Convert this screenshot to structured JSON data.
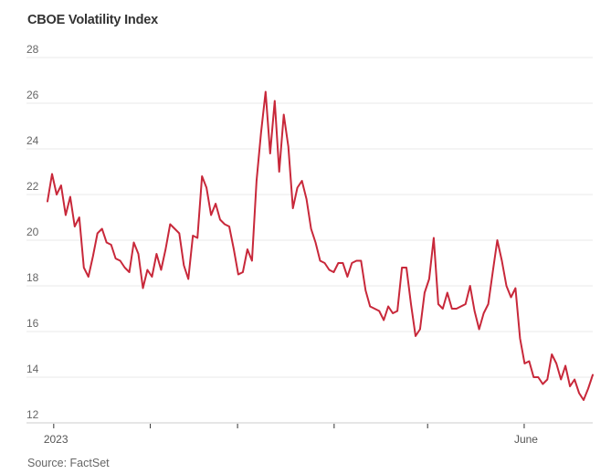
{
  "chart_data": {
    "type": "line",
    "title": "CBOE Volatility Index",
    "source": "Source: FactSet",
    "xlabel": "",
    "ylabel": "",
    "ylim": [
      12,
      28
    ],
    "yticks": [
      28,
      26,
      24,
      22,
      20,
      18,
      16,
      14,
      12
    ],
    "ytick_labels": [
      "28",
      "26",
      "24",
      "22",
      "20",
      "18",
      "16",
      "14",
      "12"
    ],
    "xlim": [
      "2022-12-30",
      "2023-06-23"
    ],
    "xticks": [
      {
        "date": "2023-01-01",
        "label": "2023"
      },
      {
        "date": "2023-02-01",
        "label": ""
      },
      {
        "date": "2023-03-01",
        "label": ""
      },
      {
        "date": "2023-04-01",
        "label": ""
      },
      {
        "date": "2023-05-01",
        "label": ""
      },
      {
        "date": "2023-06-01",
        "label": "June"
      }
    ],
    "grid": true,
    "legend": "none",
    "line_color": "#c8283a",
    "series": [
      {
        "name": "CBOE Volatility Index",
        "values": [
          21.7,
          22.9,
          22.0,
          22.4,
          21.1,
          21.9,
          20.6,
          21.0,
          18.8,
          18.4,
          19.3,
          20.3,
          20.5,
          19.9,
          19.8,
          19.2,
          19.1,
          18.8,
          18.6,
          19.9,
          19.4,
          17.9,
          18.7,
          18.4,
          19.4,
          18.7,
          19.6,
          20.7,
          20.5,
          20.3,
          18.9,
          18.3,
          20.2,
          20.1,
          22.8,
          22.3,
          21.1,
          21.6,
          20.9,
          20.7,
          20.6,
          19.6,
          18.5,
          18.6,
          19.6,
          19.1,
          22.6,
          24.7,
          26.5,
          23.8,
          26.1,
          23.0,
          25.5,
          24.1,
          21.4,
          22.3,
          22.6,
          21.8,
          20.5,
          19.9,
          19.1,
          19.0,
          18.7,
          18.6,
          19.0,
          19.0,
          18.4,
          19.0,
          19.1,
          19.1,
          17.8,
          17.1,
          17.0,
          16.9,
          16.5,
          17.1,
          16.8,
          16.9,
          18.8,
          18.8,
          17.2,
          15.8,
          16.1,
          17.7,
          18.3,
          20.1,
          17.2,
          17.0,
          17.7,
          17.0,
          17.0,
          17.1,
          17.2,
          18.0,
          16.9,
          16.1,
          16.8,
          17.2,
          18.6,
          20.0,
          19.1,
          18.0,
          17.5,
          17.9,
          15.7,
          14.6,
          14.7,
          14.0,
          14.0,
          13.7,
          13.9,
          15.0,
          14.6,
          13.9,
          14.5,
          13.6,
          13.9,
          13.3,
          13.0,
          13.5,
          14.1
        ]
      }
    ]
  }
}
